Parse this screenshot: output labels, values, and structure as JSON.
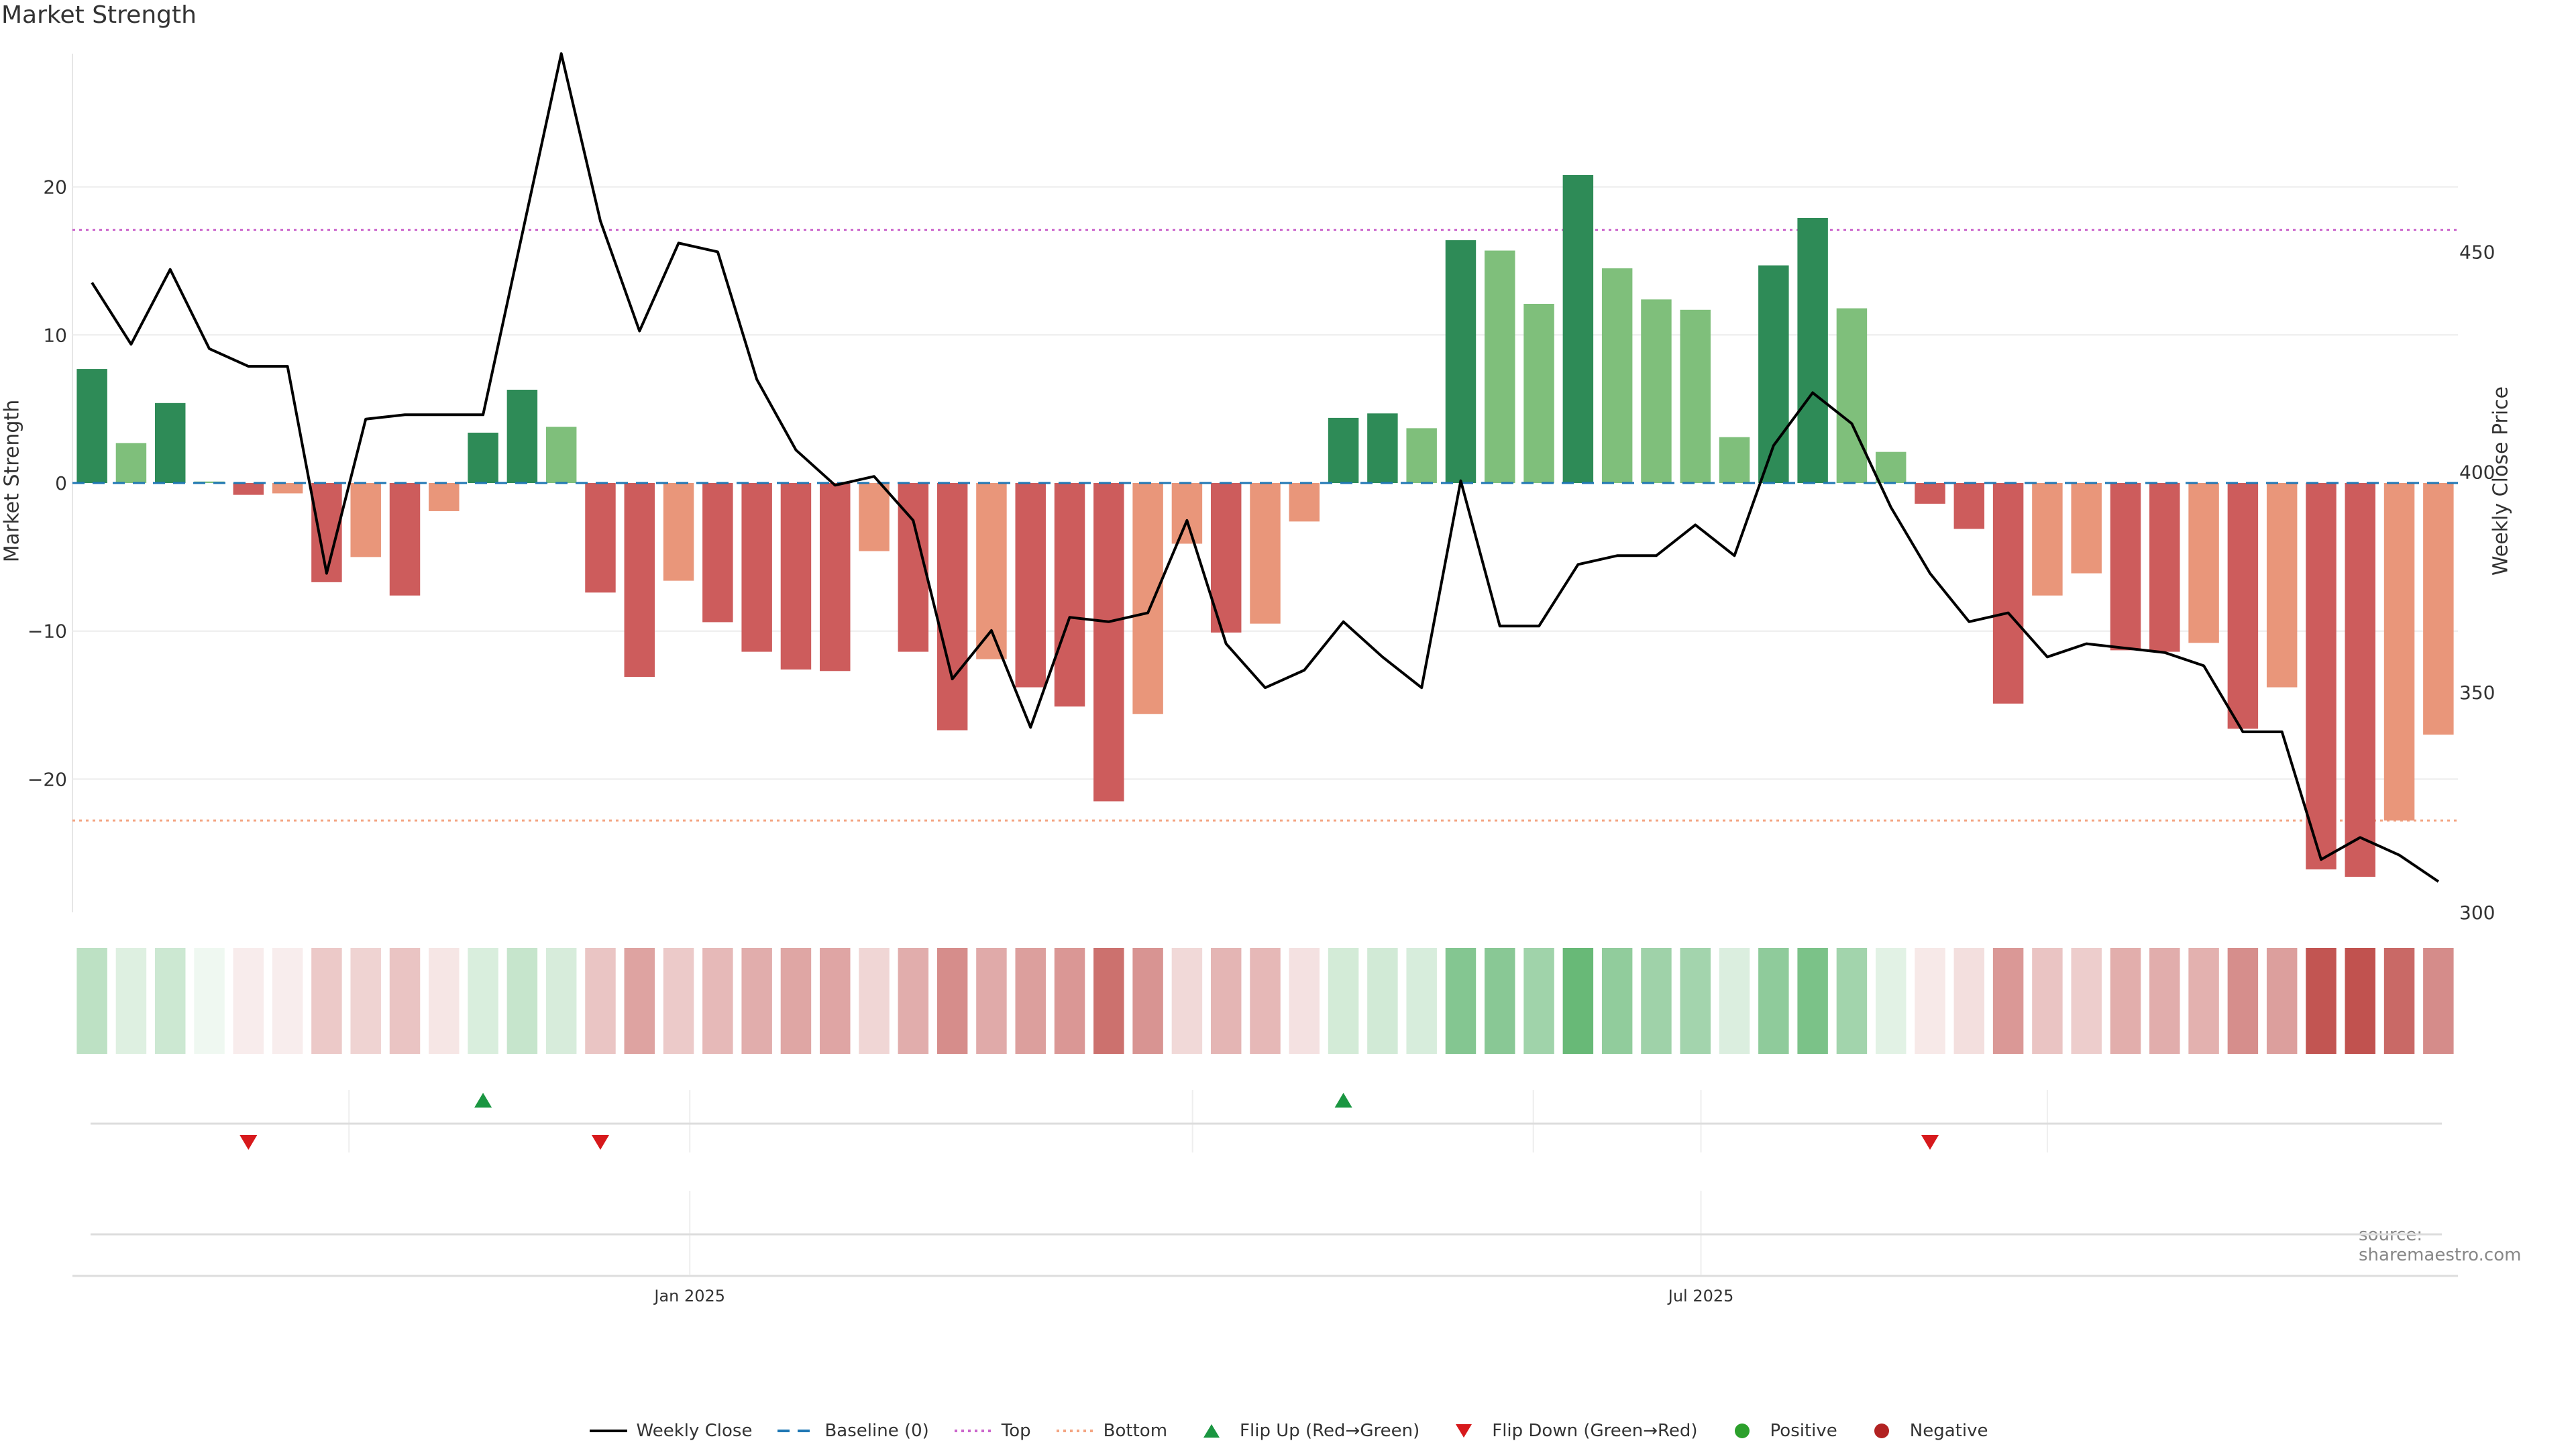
{
  "title": "Market Strength",
  "ylabel_left": "Market Strength",
  "ylabel_right": "Weekly Close Price",
  "source": "source: sharemaestro.com",
  "colors": {
    "strong_pos": "#2e8b57",
    "weak_pos": "#7fbf7b",
    "strong_neg": "#cd5c5c",
    "weak_neg": "#e9967a",
    "price_line": "#000000",
    "baseline": "#1f77b4",
    "top": "#cc66cc",
    "bottom": "#f4a582",
    "flip_up": "#1a9641",
    "flip_down": "#d7191c",
    "positive": "#2ca02c",
    "negative": "#b22222"
  },
  "legend": [
    {
      "label": "Weekly Close",
      "kind": "line-solid"
    },
    {
      "label": "Baseline (0)",
      "kind": "line-dash"
    },
    {
      "label": "Top",
      "kind": "line-dot-top"
    },
    {
      "label": "Bottom",
      "kind": "line-dot-bottom"
    },
    {
      "label": "Flip Up (Red→Green)",
      "kind": "tri-up"
    },
    {
      "label": "Flip Down (Green→Red)",
      "kind": "tri-down"
    },
    {
      "label": "Positive",
      "kind": "dot-pos"
    },
    {
      "label": "Negative",
      "kind": "dot-neg"
    }
  ],
  "chart_data": {
    "type": "bar",
    "x_start": "2024-09-16",
    "x_step_days": 7,
    "x_ticks": [
      {
        "date": "2025-01-01",
        "label": "Jan 2025"
      },
      {
        "date": "2025-07-01",
        "label": "Jul 2025"
      }
    ],
    "y_left": {
      "ylim": [
        -29,
        29
      ],
      "ticks": [
        -20,
        -10,
        0,
        10,
        20
      ]
    },
    "y_right": {
      "ylim": [
        300,
        495
      ],
      "ticks": [
        300,
        350,
        400,
        450
      ]
    },
    "top_level": 17.1,
    "bottom_level": -22.8,
    "strength": [
      7.7,
      2.7,
      5.4,
      0.1,
      -0.8,
      -0.7,
      -6.7,
      -5.0,
      -7.6,
      -1.9,
      3.4,
      6.3,
      3.8,
      -7.4,
      -13.1,
      -6.6,
      -9.4,
      -11.4,
      -12.6,
      -12.7,
      -4.6,
      -11.4,
      -16.7,
      -11.9,
      -13.8,
      -15.1,
      -21.5,
      -15.6,
      -4.1,
      -10.1,
      -9.5,
      -2.6,
      4.4,
      4.7,
      3.7,
      16.4,
      15.7,
      12.1,
      20.8,
      14.5,
      12.4,
      11.7,
      3.1,
      14.7,
      17.9,
      11.8,
      2.1,
      -1.4,
      -3.1,
      -14.9,
      -7.6,
      -6.1,
      -11.3,
      -11.4,
      -10.8,
      -16.6,
      -13.8,
      -26.1,
      -26.6,
      -22.8,
      -17.0
    ],
    "intensity": [
      "strong",
      "weak",
      "strong",
      "weak",
      "strong",
      "weak",
      "strong",
      "weak",
      "strong",
      "weak",
      "strong",
      "strong",
      "weak",
      "strong",
      "strong",
      "weak",
      "strong",
      "strong",
      "strong",
      "strong",
      "weak",
      "strong",
      "strong",
      "weak",
      "strong",
      "strong",
      "strong",
      "weak",
      "weak",
      "strong",
      "weak",
      "weak",
      "strong",
      "strong",
      "weak",
      "strong",
      "weak",
      "weak",
      "strong",
      "weak",
      "weak",
      "weak",
      "weak",
      "strong",
      "strong",
      "weak",
      "weak",
      "strong",
      "strong",
      "strong",
      "weak",
      "weak",
      "strong",
      "strong",
      "weak",
      "strong",
      "weak",
      "strong",
      "strong",
      "weak",
      "weak"
    ],
    "weekly_close": [
      443,
      429,
      446,
      428,
      424,
      424,
      377,
      412,
      413,
      413,
      413,
      454,
      495,
      457,
      432,
      452,
      450,
      421,
      405,
      397,
      399,
      389,
      353,
      364,
      342,
      367,
      366,
      368,
      389,
      361,
      351,
      355,
      366,
      358,
      351,
      398,
      365,
      365,
      379,
      381,
      381,
      388,
      381,
      406,
      418,
      411,
      392,
      377,
      366,
      368,
      358,
      361,
      360,
      359,
      356,
      341,
      341,
      312,
      317,
      313,
      307
    ],
    "flip_up_index": [
      10,
      32
    ],
    "flip_down_index": [
      4,
      13,
      47
    ]
  }
}
